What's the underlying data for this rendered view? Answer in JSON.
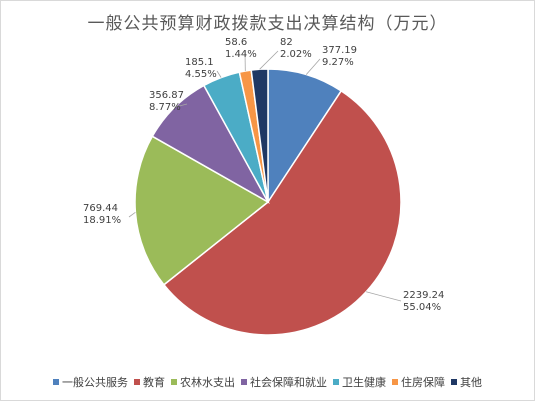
{
  "chart_data": {
    "type": "pie",
    "title": "一般公共预算财政拨款支出决算结构（万元）",
    "slices": [
      {
        "name": "一般公共服务",
        "value": 377.19,
        "percent_label": "9.27%",
        "value_label": "377.19",
        "color": "#4f81bd"
      },
      {
        "name": "教育",
        "value": 2239.24,
        "percent_label": "55.04%",
        "value_label": "2239.24",
        "color": "#c0504d"
      },
      {
        "name": "农林水支出",
        "value": 769.44,
        "percent_label": "18.91%",
        "value_label": "769.44",
        "color": "#9bbb59"
      },
      {
        "name": "社会保障和就业",
        "value": 356.87,
        "percent_label": "8.77%",
        "value_label": "356.87",
        "color": "#8064a2"
      },
      {
        "name": "卫生健康",
        "value": 185.1,
        "percent_label": "4.55%",
        "value_label": "185.1",
        "color": "#4bacc6"
      },
      {
        "name": "住房保障",
        "value": 58.6,
        "percent_label": "1.44%",
        "value_label": "58.6",
        "color": "#f79646"
      },
      {
        "name": "其他",
        "value": 82,
        "percent_label": "2.02%",
        "value_label": "82",
        "color": "#1f3864"
      }
    ],
    "legend_position": "bottom"
  }
}
